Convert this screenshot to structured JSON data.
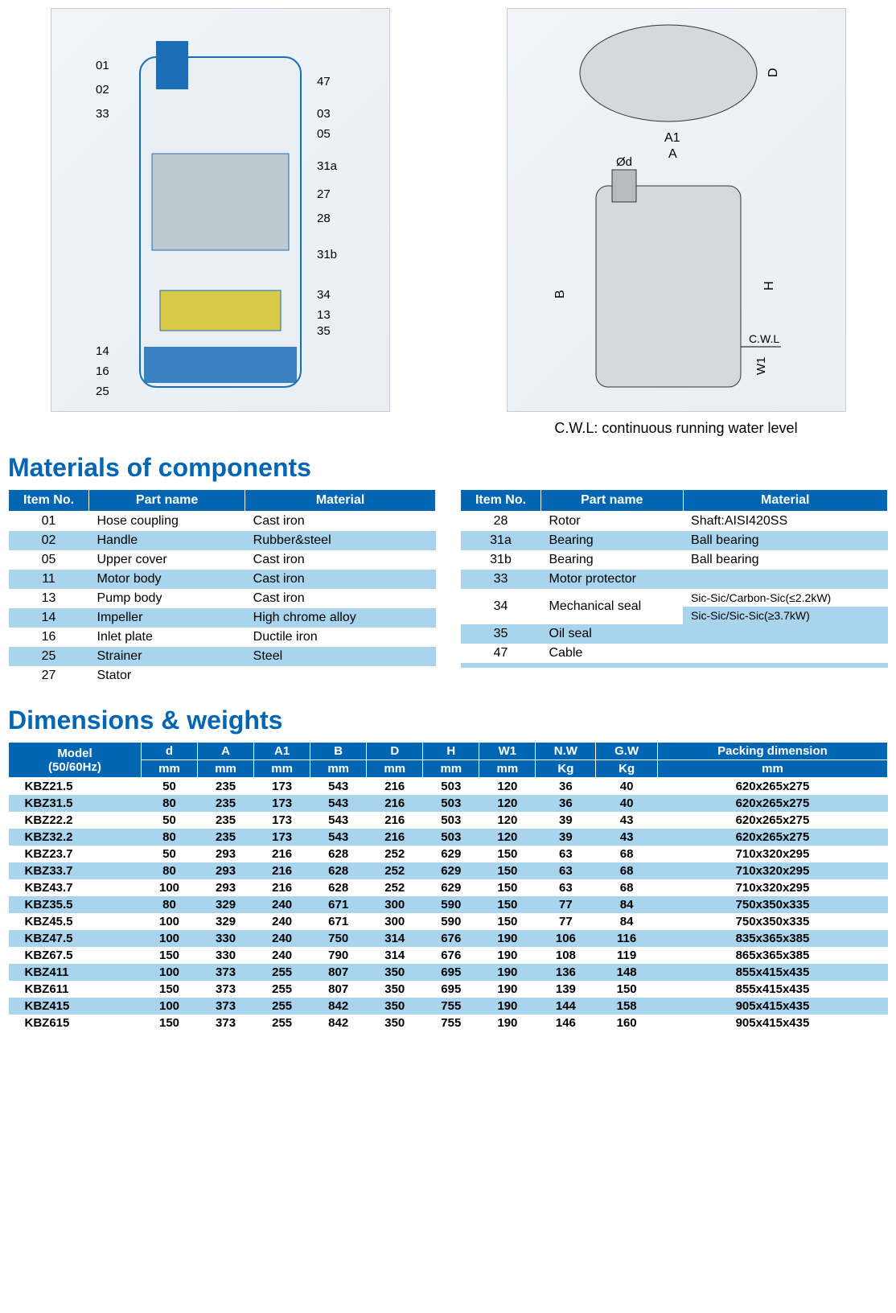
{
  "colors": {
    "brand_blue": "#0066b3",
    "row_blue": "#a8d4ed",
    "row_white": "#ffffff",
    "text": "#000000"
  },
  "diagrams": {
    "cross_section_labels": [
      "01",
      "02",
      "33",
      "47",
      "03",
      "05",
      "31a",
      "27",
      "28",
      "31b",
      "34",
      "13",
      "35",
      "14",
      "16",
      "25"
    ],
    "dim_labels": [
      "A",
      "A1",
      "D",
      "Ød",
      "B",
      "H",
      "W1",
      "C.W.L"
    ],
    "cwl_note": "C.W.L: continuous running water level"
  },
  "sections": {
    "materials_title": "Materials of components",
    "dimensions_title": "Dimensions & weights"
  },
  "materials": {
    "headers": [
      "Item No.",
      "Part name",
      "Material"
    ],
    "left": [
      {
        "no": "01",
        "name": "Hose coupling",
        "mat": "Cast iron"
      },
      {
        "no": "02",
        "name": "Handle",
        "mat": "Rubber&steel"
      },
      {
        "no": "05",
        "name": "Upper cover",
        "mat": "Cast iron"
      },
      {
        "no": "11",
        "name": "Motor body",
        "mat": "Cast iron"
      },
      {
        "no": "13",
        "name": "Pump body",
        "mat": "Cast iron"
      },
      {
        "no": "14",
        "name": "Impeller",
        "mat": "High chrome alloy"
      },
      {
        "no": "16",
        "name": "Inlet plate",
        "mat": "Ductile iron"
      },
      {
        "no": "25",
        "name": "Strainer",
        "mat": "Steel"
      },
      {
        "no": "27",
        "name": "Stator",
        "mat": ""
      }
    ],
    "right_rows": [
      {
        "cells": [
          "28",
          "Rotor",
          "Shaft:AISI420SS"
        ],
        "stripe": "a"
      },
      {
        "cells": [
          "31a",
          "Bearing",
          "Ball bearing"
        ],
        "stripe": "b"
      },
      {
        "cells": [
          "31b",
          "Bearing",
          "Ball bearing"
        ],
        "stripe": "a"
      },
      {
        "cells": [
          "33",
          "Motor protector",
          ""
        ],
        "stripe": "b"
      },
      {
        "cells": [
          "34",
          "Mechanical seal",
          "Sic-Sic/Carbon-Sic(≤2.2kW)"
        ],
        "stripe": "a",
        "merge_top": true
      },
      {
        "cells": [
          "",
          "",
          "Sic-Sic/Sic-Sic(≥3.7kW)"
        ],
        "stripe": "b",
        "merge_bottom": true
      },
      {
        "cells": [
          "35",
          "Oil seal",
          ""
        ],
        "stripe": "b",
        "after_merge": true
      },
      {
        "cells": [
          "47",
          "Cable",
          ""
        ],
        "stripe": "a"
      },
      {
        "cells": [
          "",
          "",
          ""
        ],
        "stripe": "b"
      }
    ]
  },
  "dimensions": {
    "header_row1": [
      "Model (50/60Hz)",
      "d",
      "A",
      "A1",
      "B",
      "D",
      "H",
      "W1",
      "N.W",
      "G.W",
      "Packing dimension"
    ],
    "header_row2_units": [
      "mm",
      "mm",
      "mm",
      "mm",
      "mm",
      "mm",
      "mm",
      "Kg",
      "Kg",
      "mm"
    ],
    "rows": [
      {
        "m": "KBZ21.5",
        "v": [
          "50",
          "235",
          "173",
          "543",
          "216",
          "503",
          "120",
          "36",
          "40",
          "620x265x275"
        ]
      },
      {
        "m": "KBZ31.5",
        "v": [
          "80",
          "235",
          "173",
          "543",
          "216",
          "503",
          "120",
          "36",
          "40",
          "620x265x275"
        ]
      },
      {
        "m": "KBZ22.2",
        "v": [
          "50",
          "235",
          "173",
          "543",
          "216",
          "503",
          "120",
          "39",
          "43",
          "620x265x275"
        ]
      },
      {
        "m": "KBZ32.2",
        "v": [
          "80",
          "235",
          "173",
          "543",
          "216",
          "503",
          "120",
          "39",
          "43",
          "620x265x275"
        ]
      },
      {
        "m": "KBZ23.7",
        "v": [
          "50",
          "293",
          "216",
          "628",
          "252",
          "629",
          "150",
          "63",
          "68",
          "710x320x295"
        ]
      },
      {
        "m": "KBZ33.7",
        "v": [
          "80",
          "293",
          "216",
          "628",
          "252",
          "629",
          "150",
          "63",
          "68",
          "710x320x295"
        ]
      },
      {
        "m": "KBZ43.7",
        "v": [
          "100",
          "293",
          "216",
          "628",
          "252",
          "629",
          "150",
          "63",
          "68",
          "710x320x295"
        ]
      },
      {
        "m": "KBZ35.5",
        "v": [
          "80",
          "329",
          "240",
          "671",
          "300",
          "590",
          "150",
          "77",
          "84",
          "750x350x335"
        ]
      },
      {
        "m": "KBZ45.5",
        "v": [
          "100",
          "329",
          "240",
          "671",
          "300",
          "590",
          "150",
          "77",
          "84",
          "750x350x335"
        ]
      },
      {
        "m": "KBZ47.5",
        "v": [
          "100",
          "330",
          "240",
          "750",
          "314",
          "676",
          "190",
          "106",
          "116",
          "835x365x385"
        ]
      },
      {
        "m": "KBZ67.5",
        "v": [
          "150",
          "330",
          "240",
          "790",
          "314",
          "676",
          "190",
          "108",
          "119",
          "865x365x385"
        ]
      },
      {
        "m": "KBZ411",
        "v": [
          "100",
          "373",
          "255",
          "807",
          "350",
          "695",
          "190",
          "136",
          "148",
          "855x415x435"
        ]
      },
      {
        "m": "KBZ611",
        "v": [
          "150",
          "373",
          "255",
          "807",
          "350",
          "695",
          "190",
          "139",
          "150",
          "855x415x435"
        ]
      },
      {
        "m": "KBZ415",
        "v": [
          "100",
          "373",
          "255",
          "842",
          "350",
          "755",
          "190",
          "144",
          "158",
          "905x415x435"
        ]
      },
      {
        "m": "KBZ615",
        "v": [
          "150",
          "373",
          "255",
          "842",
          "350",
          "755",
          "190",
          "146",
          "160",
          "905x415x435"
        ]
      }
    ]
  }
}
